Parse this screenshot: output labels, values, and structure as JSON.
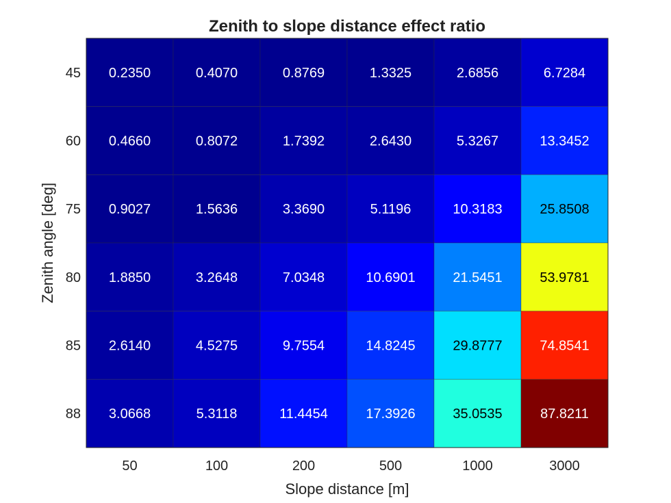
{
  "chart_data": {
    "type": "heatmap",
    "title": "Zenith to slope distance effect ratio",
    "xlabel": "Slope distance [m]",
    "ylabel": "Zenith angle [deg]",
    "x_categories": [
      "50",
      "100",
      "200",
      "500",
      "1000",
      "3000"
    ],
    "y_categories": [
      "45",
      "60",
      "75",
      "80",
      "85",
      "88"
    ],
    "values": [
      [
        0.235,
        0.407,
        0.8769,
        1.3325,
        2.6856,
        6.7284
      ],
      [
        0.466,
        0.8072,
        1.7392,
        2.643,
        5.3267,
        13.3452
      ],
      [
        0.9027,
        1.5636,
        3.369,
        5.1196,
        10.3183,
        25.8508
      ],
      [
        1.885,
        3.2648,
        7.0348,
        10.6901,
        21.5451,
        53.9781
      ],
      [
        2.614,
        4.5275,
        9.7554,
        14.8245,
        29.8777,
        74.8541
      ],
      [
        3.0668,
        5.3118,
        11.4454,
        17.3926,
        35.0535,
        87.8211
      ]
    ],
    "labels": [
      [
        "0.2350",
        "0.4070",
        "0.8769",
        "1.3325",
        "2.6856",
        "6.7284"
      ],
      [
        "0.4660",
        "0.8072",
        "1.7392",
        "2.6430",
        "5.3267",
        "13.3452"
      ],
      [
        "0.9027",
        "1.5636",
        "3.3690",
        "5.1196",
        "10.3183",
        "25.8508"
      ],
      [
        "1.8850",
        "3.2648",
        "7.0348",
        "10.6901",
        "21.5451",
        "53.9781"
      ],
      [
        "2.6140",
        "4.5275",
        "9.7554",
        "14.8245",
        "29.8777",
        "74.8541"
      ],
      [
        "3.0668",
        "5.3118",
        "11.4454",
        "17.3926",
        "35.0535",
        "87.8211"
      ]
    ],
    "colormap": "jet",
    "color_range": [
      0.235,
      87.8211
    ],
    "grid": true
  }
}
